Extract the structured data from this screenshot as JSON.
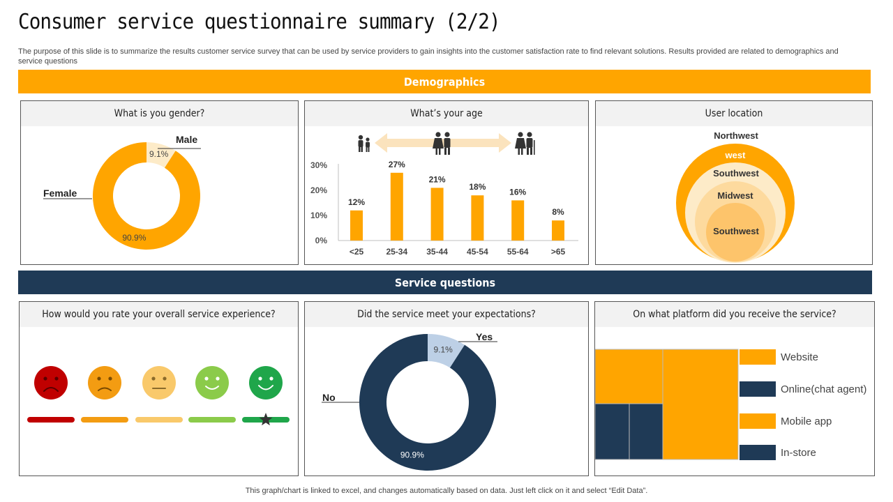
{
  "title": "Consumer service questionnaire summary (2/2)",
  "description": "The purpose of this slide is to summarize the results customer service survey that can be used by service providers to gain insights into the customer satisfaction rate to find relevant solutions. Results provided are related to demographics and service questions",
  "sections": {
    "demographics": "Demographics",
    "service": "Service questions"
  },
  "footer": "This graph/chart is linked to excel,  and changes automatically based on data. Just left click on it and select “Edit Data”.",
  "colors": {
    "orange": "#FFA500",
    "navy": "#1F3A56",
    "light_orange": "#FDEBC8",
    "light_blue": "#BDD0E6"
  },
  "cards": {
    "gender": "What is you gender?",
    "age": "What’s your age",
    "location": "User location",
    "rating": "How would you rate  your overall service experience?",
    "expectations": "Did the service meet your expectations?",
    "platform": "On what platform  did you receive the service?"
  },
  "chart_data": [
    {
      "id": "gender",
      "type": "pie",
      "title": "What is you gender?",
      "slices": [
        {
          "label": "Male",
          "value": 9.1,
          "text": "9.1%"
        },
        {
          "label": "Female",
          "value": 90.9,
          "text": "90.9%"
        }
      ]
    },
    {
      "id": "age",
      "type": "bar",
      "title": "What’s your age",
      "categories": [
        "<25",
        "25-34",
        "35-44",
        "45-54",
        "55-64",
        ">65"
      ],
      "values": [
        12,
        27,
        21,
        18,
        16,
        8
      ],
      "value_labels": [
        "12%",
        "27%",
        "21%",
        "18%",
        "16%",
        "8%"
      ],
      "yticks": [
        "0%",
        "10%",
        "20%",
        "30%"
      ],
      "ylim": [
        0,
        30
      ]
    },
    {
      "id": "expectations",
      "type": "pie",
      "title": "Did the service meet your expectations?",
      "slices": [
        {
          "label": "Yes",
          "value": 9.1,
          "text": "9.1%"
        },
        {
          "label": "No",
          "value": 90.9,
          "text": "90.9%"
        }
      ]
    }
  ],
  "location": {
    "levels": [
      "Northwest",
      "west",
      "Southwest",
      "Midwest",
      "Southwest"
    ]
  },
  "rating": {
    "faces": [
      "very-unhappy-icon",
      "unhappy-icon",
      "neutral-face-icon",
      "happy-icon",
      "very-happy-icon"
    ],
    "colors": [
      "#C00000",
      "#F39C12",
      "#F9C96B",
      "#8BCB4A",
      "#1FA64A"
    ],
    "selected_index": 4
  },
  "platform": {
    "legend": [
      "Website",
      "Online(chat agent)",
      "Mobile app",
      "In-store"
    ],
    "legend_colors": [
      "#FFA500",
      "#1F3A56",
      "#FFA500",
      "#1F3A56"
    ]
  }
}
